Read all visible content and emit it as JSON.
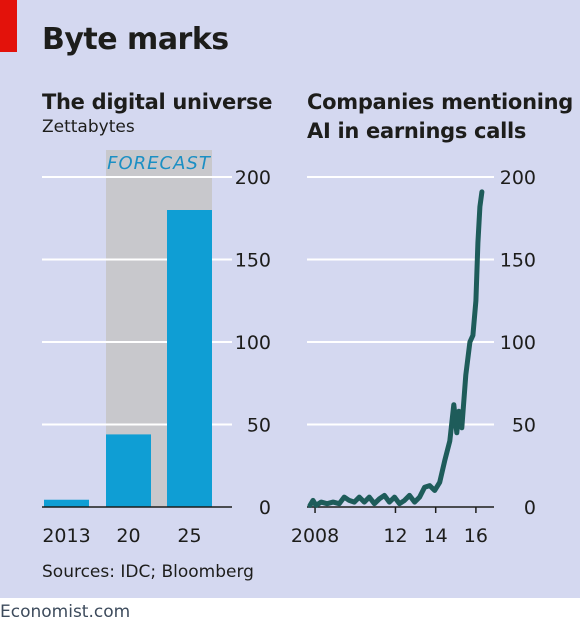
{
  "title": "Byte marks",
  "left_chart_title": "The digital universe",
  "left_chart_unit": "Zettabytes",
  "forecast_label": "FORECAST",
  "right_chart_title_line1": "Companies mentioning",
  "right_chart_title_line2": "AI in earnings calls",
  "source": "Sources: IDC; Bloomberg",
  "footer": "Economist.com",
  "colors": {
    "background": "#d4d8f0",
    "bar": "#0f9ed4",
    "line": "#1e5c5a",
    "forecast_band": "#c8c8cc",
    "forecast_text": "#1b8fc4",
    "accent_red": "#e3120b"
  },
  "chart_data": [
    {
      "type": "bar",
      "title": "The digital universe",
      "ylabel": "Zettabytes",
      "categories": [
        "2013",
        "2020",
        "2025"
      ],
      "x_tick_labels": [
        "2013",
        "20",
        "25"
      ],
      "values": [
        4.4,
        44,
        180
      ],
      "ylim": [
        0,
        200
      ],
      "yticks": [
        0,
        50,
        100,
        150,
        200
      ],
      "grid": true,
      "forecast_categories": [
        "2020",
        "2025"
      ]
    },
    {
      "type": "line",
      "title": "Companies mentioning AI in earnings calls",
      "xlim": [
        2007.6,
        2016.9
      ],
      "ylim": [
        0,
        200
      ],
      "yticks": [
        0,
        50,
        100,
        150,
        200
      ],
      "x_ticks": [
        2008,
        2012,
        2014,
        2016
      ],
      "x_tick_labels": [
        "2008",
        "12",
        "14",
        "16"
      ],
      "grid": true,
      "x": [
        2007.75,
        2007.9,
        2008.05,
        2008.3,
        2008.6,
        2008.9,
        2009.2,
        2009.45,
        2009.7,
        2009.95,
        2010.2,
        2010.45,
        2010.7,
        2010.95,
        2011.2,
        2011.45,
        2011.7,
        2011.95,
        2012.2,
        2012.45,
        2012.7,
        2012.95,
        2013.2,
        2013.45,
        2013.7,
        2013.95,
        2014.2,
        2014.45,
        2014.7,
        2014.9,
        2015.05,
        2015.15,
        2015.3,
        2015.5,
        2015.7,
        2015.85,
        2016.0,
        2016.1,
        2016.2,
        2016.3
      ],
      "y": [
        1,
        4,
        1,
        3,
        2,
        3,
        2,
        6,
        4,
        3,
        6,
        3,
        6,
        2,
        5,
        7,
        3,
        6,
        2,
        4,
        7,
        3,
        6,
        12,
        13,
        10,
        15,
        28,
        40,
        62,
        45,
        58,
        48,
        80,
        100,
        104,
        125,
        160,
        182,
        191
      ]
    }
  ]
}
